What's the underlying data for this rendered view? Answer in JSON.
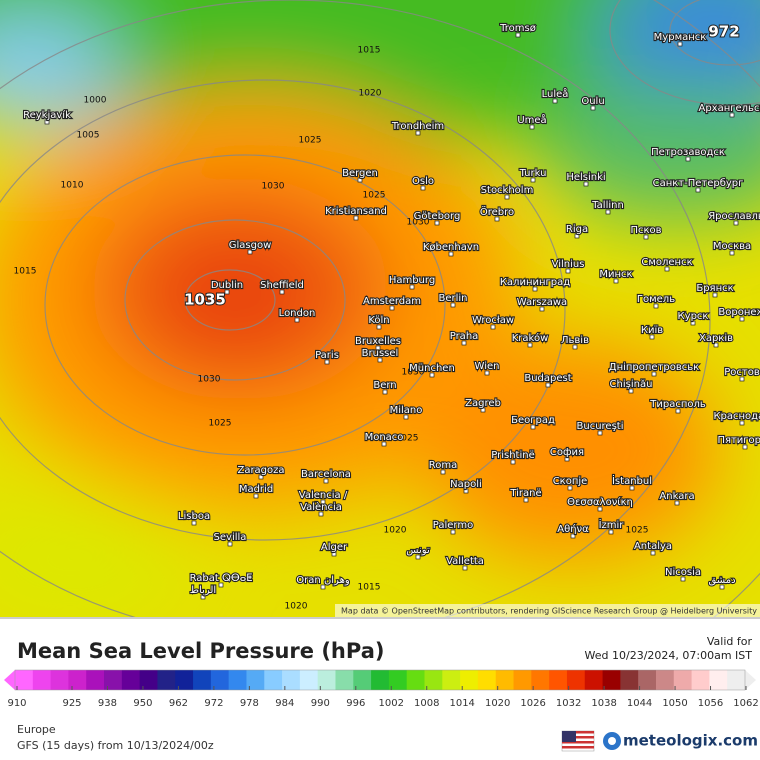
{
  "map": {
    "cities": [
      "Tromsø",
      "Мурманск",
      "Reykjavík",
      "Luleå",
      "Oulu",
      "Архангельск",
      "Umeå",
      "Trondheim",
      "Петрозаводск",
      "Turku",
      "Helsinki",
      "Bergen",
      "Oslo",
      "Санкт-Петербург",
      "Stockholm",
      "Kristiansand",
      "Göteborg",
      "Örebro",
      "Tallinn",
      "Ярославль",
      "Riga",
      "Псков",
      "Glasgow",
      "København",
      "Москва",
      "Vilnius",
      "Смоленск",
      "Минск",
      "Hamburg",
      "Калининград",
      "Брянск",
      "Dublin",
      "Sheffield",
      "Berlin",
      "Amsterdam",
      "Гомель",
      "Warszawa",
      "Курск",
      "London",
      "Köln",
      "Wrocław",
      "Київ",
      "Воронеж",
      "Харків",
      "Bruxelles",
      "Brussel",
      "Praha",
      "Kraków",
      "Львів",
      "Paris",
      "München",
      "Wien",
      "Дніпропетровськ",
      "Ростов",
      "Chișinău",
      "Budapest",
      "Bern",
      "Тирасполь",
      "Zagreb",
      "Milano",
      "Краснодар",
      "Београд",
      "Bucureşti",
      "Monaco",
      "Пятигорск",
      "Prishtinë",
      "София",
      "Roma",
      "Zaragoza",
      "Barcelona",
      "Скопје",
      "İstanbul",
      "Madrid",
      "Napoli",
      "Tiranë",
      "Θεσσαλονίκη",
      "Ankara",
      "Valencia /",
      "València",
      "Lisboa",
      "Αθήνα",
      "İzmir",
      "Sevilla",
      "Palermo",
      "تونس",
      "Alger",
      "Antalya",
      "Valletta",
      "Rabat ⵕⴱⴰⵟ",
      "الرباط",
      "Oran وهران",
      "Nicosia",
      "دمشق"
    ],
    "isobar_labels": [
      "972",
      "1015",
      "1020",
      "1000",
      "1005",
      "1025",
      "1010",
      "1030",
      "1025",
      "1030",
      "1015",
      "1035",
      "1030",
      "1030",
      "1025",
      "1025",
      "1020",
      "1025",
      "1015",
      "1020"
    ],
    "attribution": "Map data © OpenStreetMap contributors, rendering GIScience Research Group @ Heidelberg University"
  },
  "legend": {
    "title": "Mean Sea Level Pressure (hPa)",
    "valid_label": "Valid for",
    "valid_time": "Wed 10/23/2024, 07:00am IST",
    "ticks": [
      910,
      925,
      938,
      950,
      962,
      972,
      978,
      984,
      990,
      996,
      1002,
      1008,
      1014,
      1020,
      1026,
      1032,
      1038,
      1044,
      1050,
      1056,
      1062
    ],
    "colors": [
      "#ff66ff",
      "#ee44ee",
      "#dd33dd",
      "#cc22cc",
      "#aa11bb",
      "#8811aa",
      "#660099",
      "#440088",
      "#222288",
      "#112299",
      "#1144bb",
      "#2266dd",
      "#3388ee",
      "#55aaf5",
      "#88ccff",
      "#aaddff",
      "#cceeff",
      "#bbeedd",
      "#88ddaa",
      "#55cc77",
      "#22bb33",
      "#33cc22",
      "#66dd11",
      "#99e611",
      "#ccee11",
      "#eeee00",
      "#ffdd00",
      "#ffbb00",
      "#ff9900",
      "#ff7700",
      "#ff5500",
      "#ee3300",
      "#cc1100",
      "#990000",
      "#883333",
      "#aa6666",
      "#cc8888",
      "#eeaaaa",
      "#ffcccc",
      "#ffeeee",
      "#eeeeee"
    ]
  },
  "footer": {
    "region": "Europe",
    "model_run": "GFS (15 days) from 10/13/2024/00z",
    "brand": "meteologix.com"
  }
}
